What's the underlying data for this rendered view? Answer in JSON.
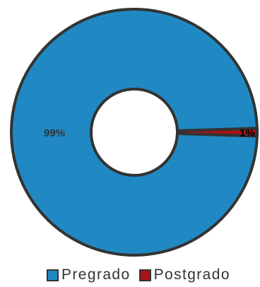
{
  "chart_data": {
    "type": "pie",
    "style": "doughnut",
    "categories": [
      "Pregrado",
      "Postgrado"
    ],
    "values": [
      99,
      1
    ],
    "data_labels": [
      "99%",
      "1%"
    ],
    "colors": [
      "#2089C4",
      "#A81216"
    ],
    "outline_color": "#333333",
    "title": "",
    "legend_position": "bottom"
  },
  "legend": {
    "items": [
      {
        "label": "Pregrado",
        "color": "#2089C4"
      },
      {
        "label": "Postgrado",
        "color": "#A81216"
      }
    ]
  }
}
